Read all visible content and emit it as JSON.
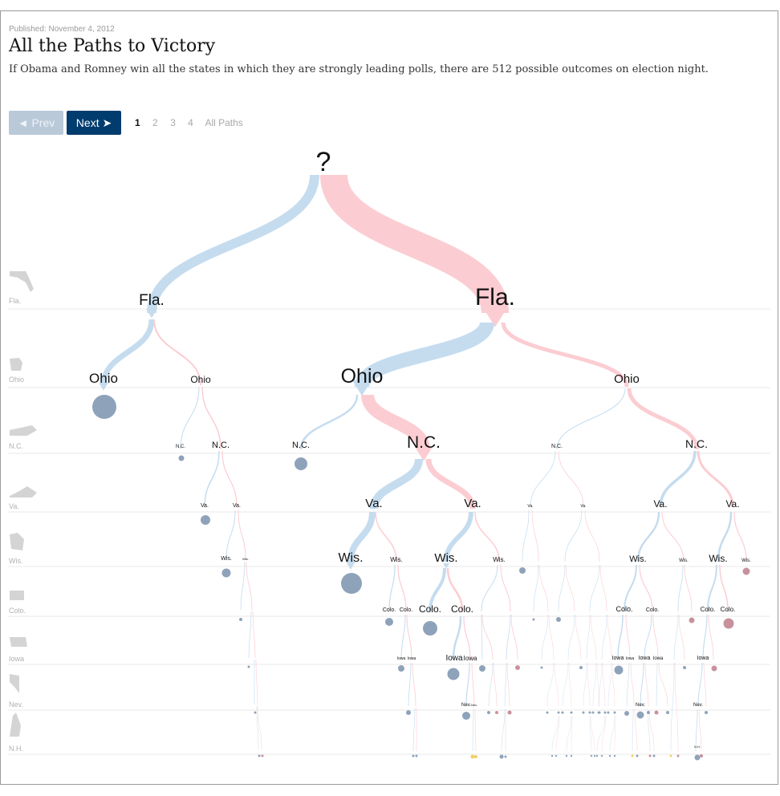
{
  "header": {
    "published": "Published: November 4, 2012",
    "title": "All the Paths to Victory",
    "subtitle": "If Obama and Romney win all the states in which they are strongly leading polls, there are 512 possible outcomes on election night."
  },
  "nav": {
    "prev_label": "◄ Prev",
    "next_label": "Next ➤",
    "pages": [
      "1",
      "2",
      "3",
      "4",
      "All Paths"
    ],
    "active_page": "1"
  },
  "tree": {
    "root_label": "?",
    "rows": [
      {
        "state": "Fla.",
        "icon": "florida-shape-icon"
      },
      {
        "state": "Ohio",
        "icon": "ohio-shape-icon"
      },
      {
        "state": "N.C.",
        "icon": "north-carolina-shape-icon"
      },
      {
        "state": "Va.",
        "icon": "virginia-shape-icon"
      },
      {
        "state": "Wis.",
        "icon": "wisconsin-shape-icon"
      },
      {
        "state": "Colo.",
        "icon": "colorado-shape-icon"
      },
      {
        "state": "Iowa",
        "icon": "iowa-shape-icon"
      },
      {
        "state": "Nev.",
        "icon": "nevada-shape-icon"
      },
      {
        "state": "N.H.",
        "icon": "new-hampshire-shape-icon"
      }
    ],
    "colors": {
      "obama_branch": "#c5dcef",
      "romney_branch": "#fbcdd2",
      "obama_win": "#8ea3ba",
      "romney_win": "#c8929c",
      "tie": "#f1d16a",
      "row_line": "#e8e8e8",
      "shape": "#d4d4d4"
    }
  }
}
